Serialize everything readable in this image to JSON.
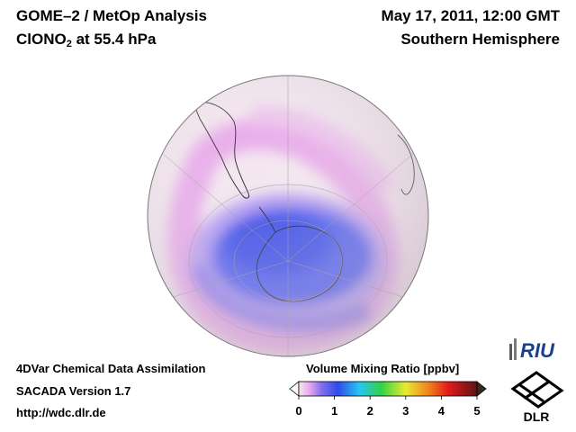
{
  "header": {
    "title_line1": "GOME–2 / MetOp Analysis",
    "species": "ClONO",
    "species_sub": "2",
    "level": " at 55.4 hPa",
    "date": "May 17, 2011, 12:00 GMT",
    "region": "Southern Hemisphere"
  },
  "footer": {
    "line1": "4DVar Chemical Data Assimilation",
    "line2": "SACADA Version 1.7",
    "line3": "http://wdc.dlr.de"
  },
  "colorbar": {
    "title": "Volume Mixing Ratio [ppbv]",
    "ticks": [
      "0",
      "1",
      "2",
      "3",
      "4",
      "5"
    ],
    "min": 0,
    "max": 5
  },
  "logos": {
    "riu": "RIU",
    "dlr": "DLR"
  },
  "colors": {
    "background_low": "#f3e6ef",
    "high_band": "#e8a8ea",
    "depletion": "#3b4fe6"
  }
}
